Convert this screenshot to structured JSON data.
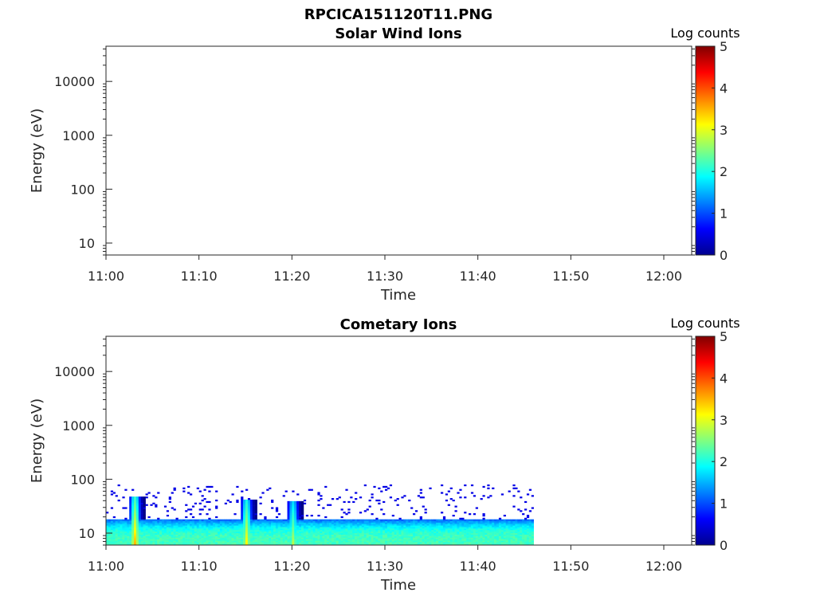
{
  "figure": {
    "title": "RPCICA151120T11.PNG"
  },
  "colorbar": {
    "label": "Log counts",
    "ticks": [
      "0",
      "1",
      "2",
      "3",
      "4",
      "5"
    ],
    "range": [
      0,
      5
    ],
    "colormap": "jet"
  },
  "chart_data": [
    {
      "type": "heatmap",
      "title": "Solar Wind Ions",
      "xlabel": "Time",
      "ylabel": "Energy (eV)",
      "x_ticks": [
        "11:00",
        "11:10",
        "11:20",
        "11:30",
        "11:40",
        "11:50",
        "12:00"
      ],
      "xlim": [
        "11:00",
        "12:03"
      ],
      "y_scale": "log",
      "y_ticks": [
        "10",
        "100",
        "1000",
        "10000"
      ],
      "ylim": [
        6,
        45000
      ],
      "z_label": "Log counts",
      "zlim": [
        0,
        5
      ],
      "data_present": false,
      "note_values": []
    },
    {
      "type": "heatmap",
      "title": "Cometary Ions",
      "xlabel": "Time",
      "ylabel": "Energy (eV)",
      "x_ticks": [
        "11:00",
        "11:10",
        "11:20",
        "11:30",
        "11:40",
        "11:50",
        "12:00"
      ],
      "xlim": [
        "11:00",
        "12:03"
      ],
      "y_scale": "log",
      "y_ticks": [
        "10",
        "100",
        "1000",
        "10000"
      ],
      "ylim": [
        6,
        45000
      ],
      "z_label": "Log counts",
      "zlim": [
        0,
        5
      ],
      "data_present": true,
      "data_time_range": [
        "11:00",
        "11:46"
      ],
      "background_band": {
        "energy_range_eV": [
          6,
          18
        ],
        "log_counts_low_energy": 2.2,
        "log_counts_edge": 1.0
      },
      "sparse_counts": {
        "energy_range_eV": [
          18,
          80
        ],
        "log_counts": 0.5
      },
      "bursts": [
        {
          "time": "11:03",
          "energy_range_eV": [
            6,
            45
          ],
          "peak_log_counts": 3.5
        },
        {
          "time": "11:15",
          "energy_range_eV": [
            6,
            40
          ],
          "peak_log_counts": 3.2
        },
        {
          "time": "11:20",
          "energy_range_eV": [
            6,
            38
          ],
          "peak_log_counts": 2.8
        }
      ]
    }
  ]
}
